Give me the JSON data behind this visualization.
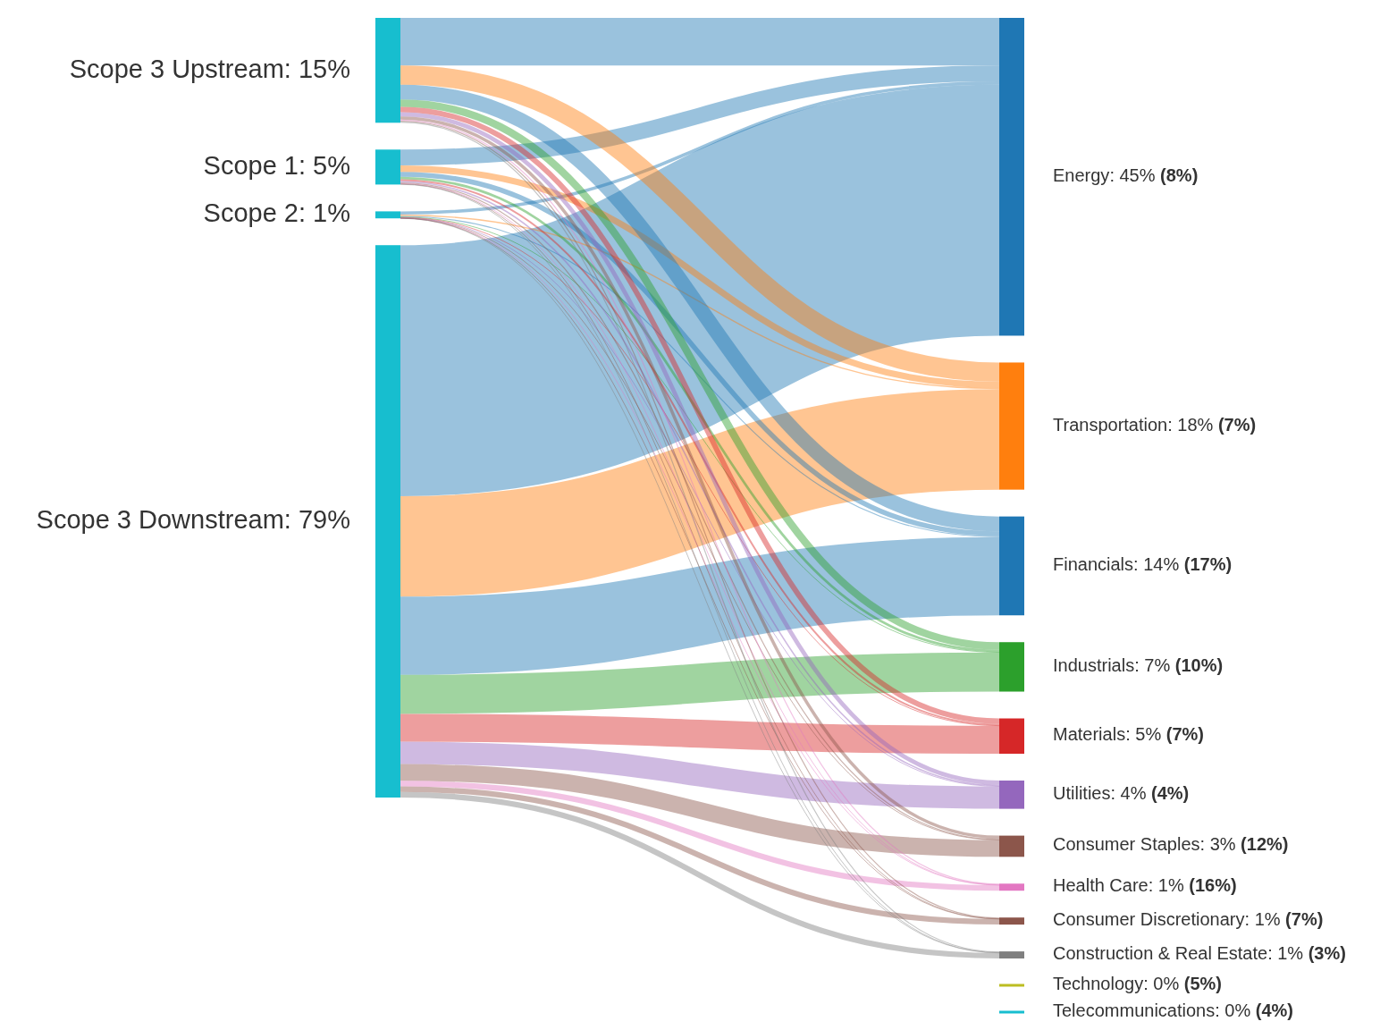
{
  "chart_data": {
    "type": "other",
    "categories": [
      "Scope 3 Upstream",
      "Scope 1",
      "Scope 2",
      "Scope 3 Downstream",
      "Energy",
      "Transportation",
      "Financials",
      "Industrials",
      "Materials",
      "Utilities",
      "Consumer Staples",
      "Health Care",
      "Consumer Discretionary",
      "Construction & Real Estate",
      "Technology",
      "Telecommunications"
    ],
    "series": [
      {
        "values": [
          15,
          5,
          1,
          79,
          45,
          18,
          14,
          7,
          5,
          4,
          3,
          1,
          1,
          1,
          0,
          0
        ],
        "value_labels": [
          ": 15%",
          ": 5%",
          ": 1%",
          ": 79%",
          ": 45%",
          ": 18%",
          ": 14%",
          ": 7%",
          ": 5%",
          ": 4%",
          ": 3%",
          ": 1%",
          ": 1%",
          ": 1%",
          ": 0%",
          ": 0%"
        ],
        "colors": [
          "#17becf",
          "#17becf",
          "#17becf",
          "#17becf",
          "#1f77b4",
          "#ff7f0e",
          "#1f77b4",
          "#2ca02c",
          "#d62728",
          "#9467bd",
          "#8c564b",
          "#e377c2",
          "#8c564b",
          "#7f7f7f",
          "#bcbd22",
          "#17becf"
        ]
      },
      {
        "values": [
          null,
          null,
          null,
          null,
          8,
          7,
          17,
          10,
          7,
          4,
          12,
          16,
          7,
          3,
          5,
          4
        ],
        "value_labels": [
          null,
          null,
          null,
          null,
          "(8%)",
          "(7%)",
          "(17%)",
          "(10%)",
          "(7%)",
          "(4%)",
          "(12%)",
          "(16%)",
          "(7%)",
          "(3%)",
          "(5%)",
          "(4%)"
        ]
      }
    ]
  }
}
